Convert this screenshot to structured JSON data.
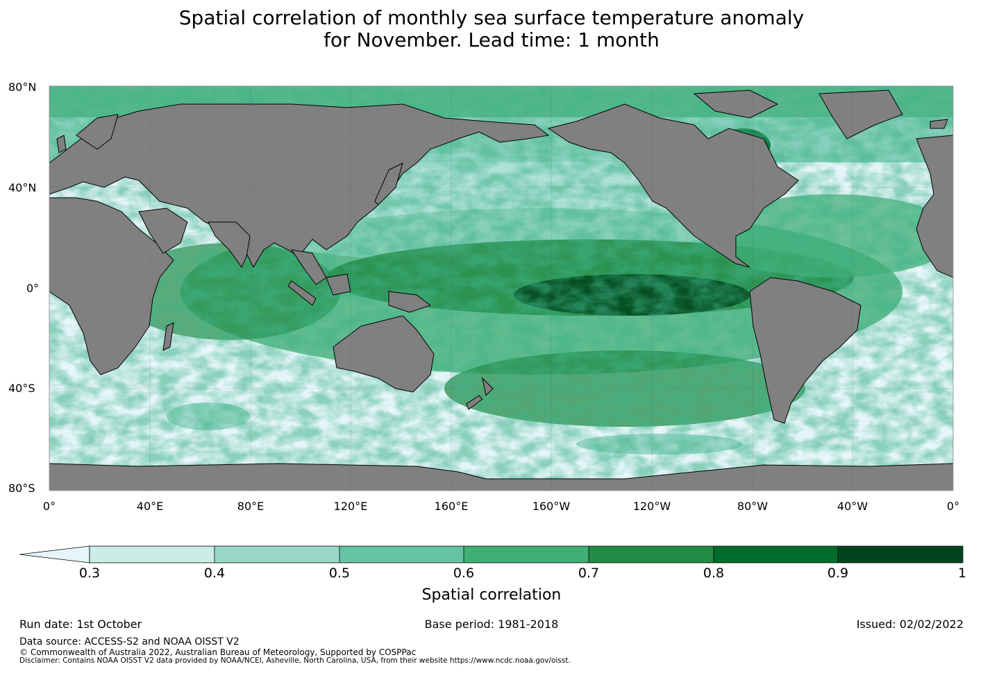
{
  "title_line1": "Spatial correlation of monthly sea surface temperature anomaly",
  "title_line2": "for November. Lead time: 1 month",
  "lat_labels": [
    "80°N",
    "40°N",
    "0°",
    "40°S",
    "80°S"
  ],
  "lon_labels": [
    "0°",
    "40°E",
    "80°E",
    "120°E",
    "160°E",
    "160°W",
    "120°W",
    "80°W",
    "40°W",
    "0°"
  ],
  "colorbar": {
    "label": "Spatial correlation",
    "ticks": [
      "0.3",
      "0.4",
      "0.5",
      "0.6",
      "0.7",
      "0.8",
      "0.9",
      "1"
    ],
    "colors": [
      "#e5f5f9",
      "#ccece6",
      "#99d8c9",
      "#66c2a4",
      "#41ae76",
      "#238b45",
      "#006d2c",
      "#00441b"
    ]
  },
  "land_color": "#808080",
  "footer": {
    "run_date": "Run date: 1st October",
    "base_period": "Base period: 1981-2018",
    "issued": "Issued: 02/02/2022",
    "data_source": "Data source: ACCESS-S2 and NOAA OISST V2",
    "copyright": "© Commonwealth of Australia 2022, Australian Bureau of Meteorology, Supported by COSPPac",
    "disclaimer": "Disclaimer: Contains NOAA OISST V2 data provided by NOAA/NCEI, Asheville, North Carolina, USA, from their website https://www.ncdc.noaa.gov/oisst."
  }
}
